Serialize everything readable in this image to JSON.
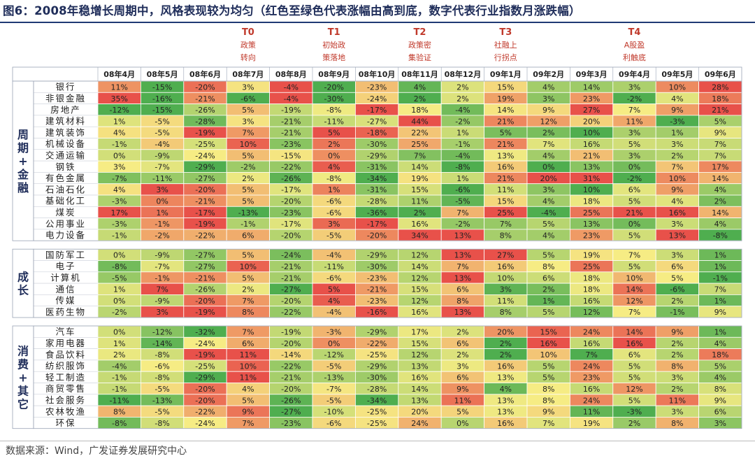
{
  "page": {
    "title": "图6：2008年稳增长周期中，风格表现较为均匀（红色至绿色代表涨幅由高到底，数字代表行业指数月涨跌幅）",
    "source": "数据来源：Wind，广发证券发展研究中心"
  },
  "chart_data": {
    "type": "heatmap",
    "title": "图6：2008年稳增长周期中，风格表现较为均匀（红色至绿色代表涨幅由高到底，数字代表行业指数月涨跌幅）",
    "columns": [
      "08年4月",
      "08年5月",
      "08年6月",
      "08年7月",
      "08年8月",
      "08年9月",
      "08年10月",
      "08年11月",
      "08年12月",
      "09年1月",
      "09年2月",
      "09年3月",
      "09年4月",
      "09年5月",
      "09年6月"
    ],
    "markers": [
      {
        "column": "08年7月",
        "tag": "T0",
        "label": "政策转向"
      },
      {
        "column": "08年9月",
        "tag": "T1",
        "label": "初始政策落地"
      },
      {
        "column": "08年11月",
        "tag": "T2",
        "label": "政策密集验证"
      },
      {
        "column": "09年1月",
        "tag": "T3",
        "label": "社融上行拐点"
      },
      {
        "column": "09年4月",
        "tag": "T4",
        "label": "A股盈利触底"
      }
    ],
    "color_scale": {
      "high": "#e8514a",
      "mid": "#f6ec84",
      "low": "#4fae4f"
    },
    "groups": [
      {
        "label": "周期+金融",
        "rows": [
          {
            "name": "银行",
            "values": [
              11,
              -15,
              -20,
              3,
              -4,
              -20,
              -23,
              4,
              2,
              15,
              4,
              14,
              3,
              10,
              28
            ]
          },
          {
            "name": "非银金融",
            "values": [
              35,
              -16,
              -21,
              -6,
              -4,
              -30,
              -24,
              2,
              2,
              19,
              3,
              23,
              -2,
              4,
              18
            ]
          },
          {
            "name": "房地产",
            "values": [
              -12,
              -15,
              -26,
              5,
              -19,
              -8,
              -17,
              18,
              -4,
              14,
              9,
              27,
              7,
              9,
              21
            ]
          },
          {
            "name": "建筑材料",
            "values": [
              1,
              -5,
              -28,
              3,
              -21,
              -11,
              -27,
              44,
              -2,
              21,
              12,
              20,
              11,
              -3,
              5
            ]
          },
          {
            "name": "建筑装饰",
            "values": [
              4,
              -5,
              -19,
              7,
              -21,
              5,
              -18,
              22,
              1,
              5,
              2,
              10,
              3,
              1,
              9
            ]
          },
          {
            "name": "机械设备",
            "values": [
              -1,
              -4,
              -25,
              10,
              -23,
              2,
              -30,
              25,
              -1,
              21,
              7,
              16,
              5,
              3,
              7
            ]
          },
          {
            "name": "交通运输",
            "values": [
              0,
              -9,
              -24,
              5,
              -15,
              0,
              -29,
              7,
              -4,
              13,
              4,
              21,
              3,
              2,
              7
            ]
          },
          {
            "name": "钢铁",
            "values": [
              3,
              -7,
              -29,
              -2,
              -22,
              4,
              -31,
              14,
              -8,
              16,
              0,
              13,
              0,
              7,
              17
            ]
          },
          {
            "name": "有色金属",
            "values": [
              -7,
              -11,
              -27,
              2,
              -26,
              -8,
              -34,
              19,
              1,
              21,
              20,
              31,
              -2,
              10,
              14
            ]
          },
          {
            "name": "石油石化",
            "values": [
              4,
              3,
              -20,
              5,
              -17,
              1,
              -31,
              15,
              -6,
              11,
              3,
              10,
              6,
              9,
              4
            ]
          },
          {
            "name": "基础化工",
            "values": [
              -3,
              0,
              -21,
              5,
              -20,
              -6,
              -28,
              11,
              -5,
              15,
              4,
              18,
              5,
              4,
              2
            ]
          },
          {
            "name": "煤炭",
            "values": [
              17,
              1,
              -17,
              -13,
              -23,
              -6,
              -36,
              2,
              7,
              25,
              -4,
              25,
              21,
              16,
              14
            ]
          },
          {
            "name": "公用事业",
            "values": [
              -3,
              -1,
              -19,
              -1,
              -17,
              3,
              -17,
              16,
              -2,
              7,
              5,
              13,
              0,
              3,
              4
            ]
          },
          {
            "name": "电力设备",
            "values": [
              -1,
              -2,
              -22,
              6,
              -20,
              -5,
              -20,
              34,
              13,
              8,
              4,
              23,
              5,
              13,
              -8
            ]
          }
        ]
      },
      {
        "label": "成长",
        "rows": [
          {
            "name": "国防军工",
            "values": [
              0,
              -9,
              -27,
              5,
              -24,
              -4,
              -29,
              12,
              13,
              27,
              5,
              19,
              7,
              3,
              1
            ]
          },
          {
            "name": "电子",
            "values": [
              -8,
              -7,
              -27,
              10,
              -21,
              -11,
              -30,
              14,
              7,
              16,
              8,
              25,
              5,
              6,
              1
            ]
          },
          {
            "name": "计算机",
            "values": [
              -5,
              -1,
              -21,
              5,
              -21,
              -6,
              -23,
              12,
              13,
              10,
              6,
              18,
              10,
              5,
              -1
            ]
          },
          {
            "name": "通信",
            "values": [
              1,
              7,
              -26,
              2,
              -27,
              5,
              -21,
              15,
              6,
              3,
              2,
              18,
              14,
              -6,
              7
            ]
          },
          {
            "name": "传媒",
            "values": [
              0,
              -9,
              -20,
              7,
              -20,
              4,
              -23,
              12,
              8,
              11,
              1,
              16,
              12,
              2,
              1
            ]
          },
          {
            "name": "医药生物",
            "values": [
              -2,
              3,
              -19,
              8,
              -22,
              -4,
              -16,
              16,
              13,
              8,
              5,
              12,
              7,
              -1,
              9
            ]
          }
        ]
      },
      {
        "label": "消费+其它",
        "rows": [
          {
            "name": "汽车",
            "values": [
              0,
              -12,
              -32,
              7,
              -19,
              -3,
              -29,
              17,
              2,
              20,
              15,
              24,
              14,
              9,
              1
            ]
          },
          {
            "name": "家用电器",
            "values": [
              1,
              -14,
              -24,
              6,
              -20,
              0,
              -22,
              15,
              6,
              2,
              16,
              16,
              16,
              2,
              4
            ]
          },
          {
            "name": "食品饮料",
            "values": [
              2,
              -8,
              -19,
              11,
              -14,
              -12,
              -25,
              12,
              2,
              2,
              10,
              7,
              6,
              2,
              18
            ]
          },
          {
            "name": "纺织服饰",
            "values": [
              -4,
              -6,
              -25,
              10,
              -22,
              -5,
              -29,
              13,
              3,
              16,
              5,
              24,
              5,
              8,
              5
            ]
          },
          {
            "name": "轻工制造",
            "values": [
              -1,
              -8,
              -29,
              11,
              -21,
              -13,
              -30,
              16,
              6,
              13,
              5,
              23,
              5,
              3,
              4
            ]
          },
          {
            "name": "商贸零售",
            "values": [
              -1,
              -5,
              -20,
              4,
              -20,
              -7,
              -28,
              14,
              9,
              4,
              8,
              16,
              12,
              2,
              8
            ]
          },
          {
            "name": "社会服务",
            "values": [
              -11,
              -13,
              -20,
              5,
              -26,
              -5,
              -34,
              13,
              11,
              13,
              8,
              24,
              5,
              11,
              9
            ]
          },
          {
            "name": "农林牧渔",
            "values": [
              8,
              -5,
              -22,
              9,
              -27,
              -10,
              -25,
              20,
              5,
              13,
              9,
              11,
              -3,
              3,
              6
            ]
          },
          {
            "name": "环保",
            "values": [
              -8,
              -8,
              -24,
              7,
              -23,
              -6,
              -25,
              24,
              0,
              16,
              7,
              19,
              2,
              8,
              3
            ]
          }
        ]
      }
    ]
  }
}
